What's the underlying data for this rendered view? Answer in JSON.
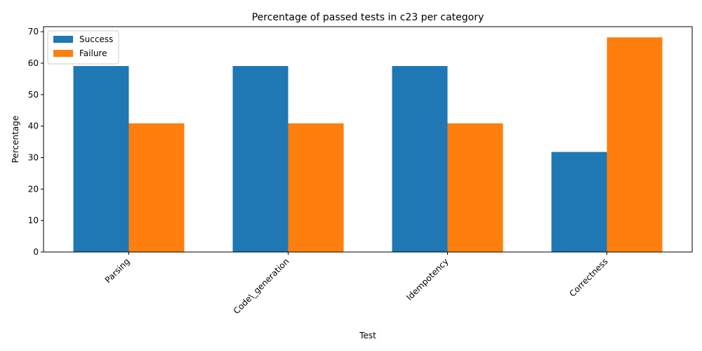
{
  "chart_data": {
    "type": "bar",
    "title": "Percentage of passed tests in c23 per category",
    "xlabel": "Test",
    "ylabel": "Percentage",
    "categories": [
      "Parsing",
      "Code\\_generation",
      "Idempotency",
      "Correctness"
    ],
    "series": [
      {
        "name": "Success",
        "color": "#1f77b4",
        "values": [
          59.1,
          59.1,
          59.1,
          31.8
        ]
      },
      {
        "name": "Failure",
        "color": "#ff7f0e",
        "values": [
          40.9,
          40.9,
          40.9,
          68.2
        ]
      }
    ],
    "ylim": [
      0,
      71.6
    ],
    "yticks": [
      0,
      10,
      20,
      30,
      40,
      50,
      60,
      70
    ],
    "grid": false,
    "legend_position": "top-left"
  }
}
